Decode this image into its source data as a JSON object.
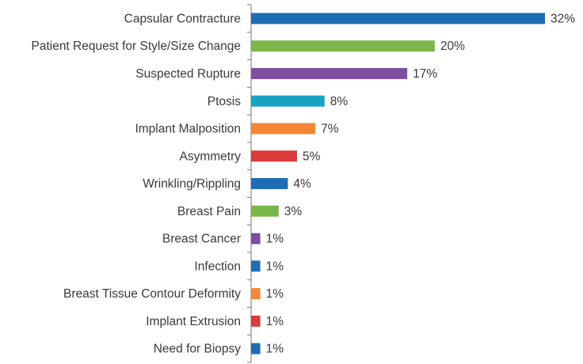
{
  "chart_data": {
    "type": "bar",
    "orientation": "horizontal",
    "categories": [
      "Capsular Contracture",
      "Patient Request for Style/Size Change",
      "Suspected Rupture",
      "Ptosis",
      "Implant Malposition",
      "Asymmetry",
      "Wrinkling/Rippling",
      "Breast Pain",
      "Breast Cancer",
      "Infection",
      "Breast Tissue Contour Deformity",
      "Implant Extrusion",
      "Need for Biopsy"
    ],
    "values": [
      32,
      20,
      17,
      8,
      7,
      5,
      4,
      3,
      1,
      1,
      1,
      1,
      1
    ],
    "value_labels": [
      "32%",
      "20%",
      "17%",
      "8%",
      "7%",
      "5%",
      "4%",
      "3%",
      "1%",
      "1%",
      "1%",
      "1%",
      "1%"
    ],
    "colors": [
      "#1f6db5",
      "#7ab648",
      "#7d4f9e",
      "#17a3c4",
      "#f58634",
      "#d93a3a",
      "#1f6db5",
      "#7ab648",
      "#7d4f9e",
      "#1f6db5",
      "#f58634",
      "#d93a3a",
      "#1f6db5"
    ]
  }
}
